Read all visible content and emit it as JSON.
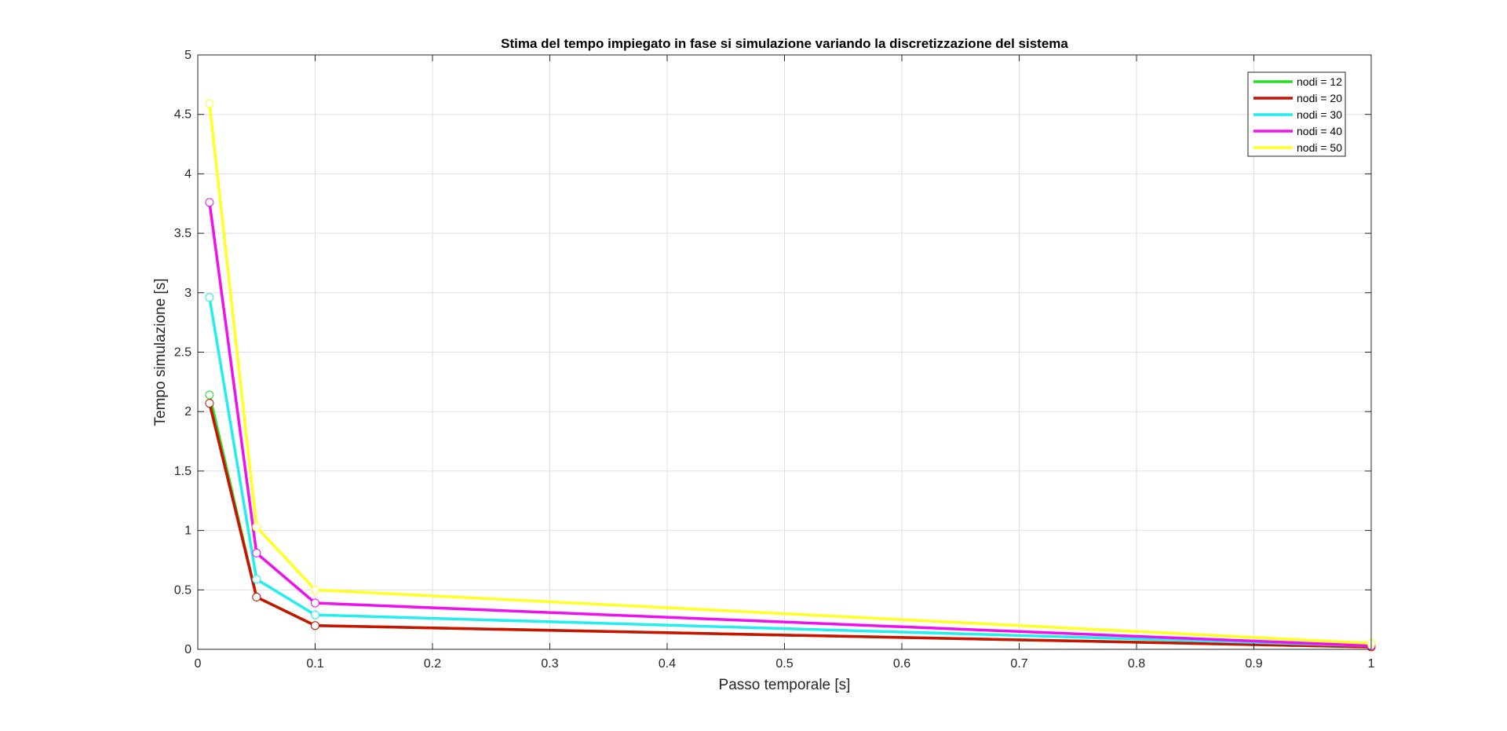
{
  "chart_data": {
    "type": "line",
    "title": "Stima del tempo impiegato in fase si simulazione variando la discretizzazione del sistema",
    "xlabel": "Passo temporale [s]",
    "ylabel": "Tempo simulazione [s]",
    "xlim": [
      0,
      1
    ],
    "ylim": [
      0,
      5
    ],
    "xticks": [
      0,
      0.1,
      0.2,
      0.3,
      0.4,
      0.5,
      0.6,
      0.7,
      0.8,
      0.9,
      1
    ],
    "xtick_labels": [
      "0",
      "0.1",
      "0.2",
      "0.3",
      "0.4",
      "0.5",
      "0.6",
      "0.7",
      "0.8",
      "0.9",
      "1"
    ],
    "yticks": [
      0,
      0.5,
      1,
      1.5,
      2,
      2.5,
      3,
      3.5,
      4,
      4.5,
      5
    ],
    "ytick_labels": [
      "0",
      "0.5",
      "1",
      "1.5",
      "2",
      "2.5",
      "3",
      "3.5",
      "4",
      "4.5",
      "5"
    ],
    "grid": true,
    "legend_position": "top-right",
    "x": [
      0.01,
      0.05,
      0.1,
      1
    ],
    "series": [
      {
        "name": "nodi = 12",
        "color": "#22dd22",
        "values": [
          2.14,
          0.44,
          0.2,
          0.02
        ]
      },
      {
        "name": "nodi = 20",
        "color": "#cc1100",
        "values": [
          2.07,
          0.44,
          0.2,
          0.02
        ]
      },
      {
        "name": "nodi = 30",
        "color": "#22eeee",
        "values": [
          2.96,
          0.59,
          0.29,
          0.03
        ]
      },
      {
        "name": "nodi = 40",
        "color": "#ee11ee",
        "values": [
          3.76,
          0.81,
          0.39,
          0.03
        ]
      },
      {
        "name": "nodi = 50",
        "color": "#ffff22",
        "values": [
          4.59,
          1.03,
          0.5,
          0.05
        ]
      }
    ]
  }
}
